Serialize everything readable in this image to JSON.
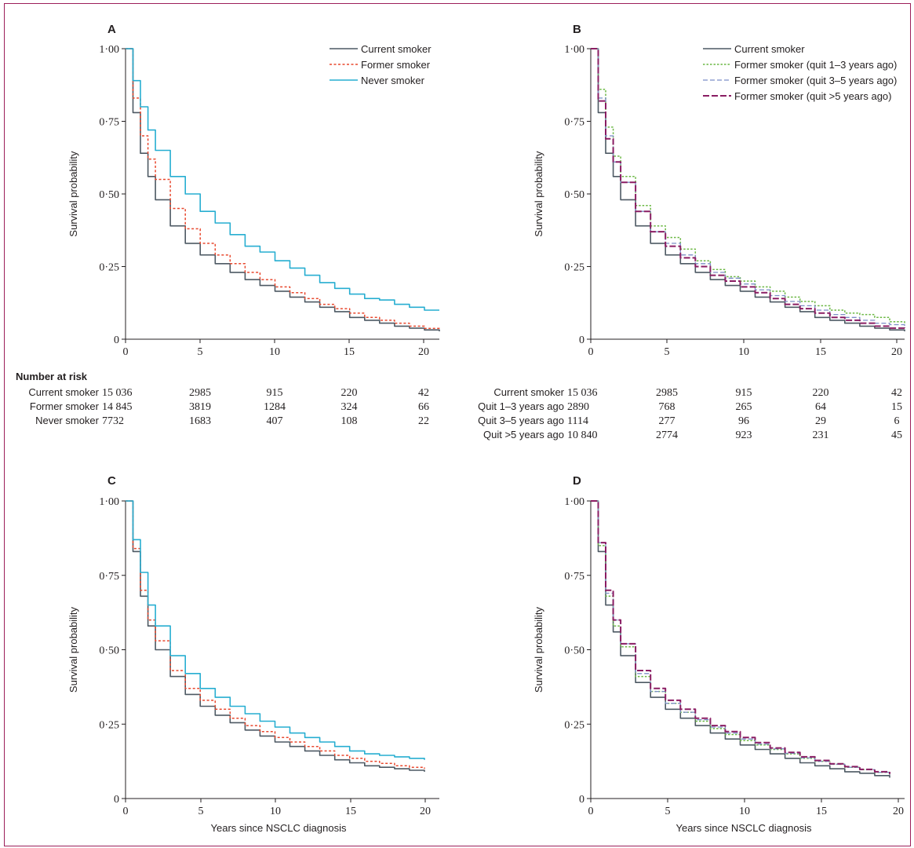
{
  "figure": {
    "y_axis_label": "Survival probability",
    "x_axis_label": "Years since NSCLC diagnosis",
    "risk_table_title": "Number at risk"
  },
  "colors": {
    "current": "#4d5963",
    "former": "#e8482e",
    "never": "#27aed1",
    "quit13": "#6cb845",
    "quit35": "#7b8ec6",
    "quit5": "#8a1d63",
    "frame": "#9c1f5a"
  },
  "chart_data": [
    {
      "panel": "A",
      "type": "line",
      "xlim": [
        0,
        21
      ],
      "ylim": [
        0,
        1
      ],
      "xticks": [
        "0",
        "5",
        "10",
        "15",
        "20"
      ],
      "yticks": [
        "0",
        "0·25",
        "0·50",
        "0·75",
        "1·00"
      ],
      "legend_position": "top-right",
      "series": [
        {
          "name": "Current smoker",
          "style": "current",
          "x": [
            0,
            0.5,
            1,
            1.5,
            2,
            3,
            4,
            5,
            6,
            7,
            8,
            9,
            10,
            11,
            12,
            13,
            14,
            15,
            16,
            17,
            18,
            19,
            20,
            21
          ],
          "y": [
            1,
            0.78,
            0.64,
            0.56,
            0.48,
            0.39,
            0.33,
            0.29,
            0.26,
            0.23,
            0.205,
            0.185,
            0.165,
            0.145,
            0.128,
            0.11,
            0.095,
            0.075,
            0.065,
            0.055,
            0.045,
            0.038,
            0.032,
            0.027
          ]
        },
        {
          "name": "Former smoker",
          "style": "former",
          "x": [
            0,
            0.5,
            1,
            1.5,
            2,
            3,
            4,
            5,
            6,
            7,
            8,
            9,
            10,
            11,
            12,
            13,
            14,
            15,
            16,
            17,
            18,
            19,
            20,
            21
          ],
          "y": [
            1,
            0.83,
            0.7,
            0.62,
            0.55,
            0.45,
            0.38,
            0.33,
            0.29,
            0.26,
            0.23,
            0.205,
            0.18,
            0.16,
            0.14,
            0.12,
            0.105,
            0.09,
            0.075,
            0.065,
            0.055,
            0.045,
            0.037,
            0.03
          ]
        },
        {
          "name": "Never smoker",
          "style": "never",
          "x": [
            0,
            0.5,
            1,
            1.5,
            2,
            3,
            4,
            5,
            6,
            7,
            8,
            9,
            10,
            11,
            12,
            13,
            14,
            15,
            16,
            17,
            18,
            19,
            20,
            21
          ],
          "y": [
            1,
            0.89,
            0.8,
            0.72,
            0.65,
            0.56,
            0.5,
            0.44,
            0.4,
            0.36,
            0.32,
            0.3,
            0.27,
            0.245,
            0.22,
            0.195,
            0.175,
            0.155,
            0.14,
            0.135,
            0.12,
            0.11,
            0.1,
            0.1
          ]
        }
      ],
      "risk_table": {
        "times": [
          "0",
          "5",
          "10",
          "15",
          "20"
        ],
        "rows": [
          {
            "label": "Current smoker",
            "values": [
              "15 036",
              "2985",
              "915",
              "220",
              "42"
            ]
          },
          {
            "label": "Former smoker",
            "values": [
              "14 845",
              "3819",
              "1284",
              "324",
              "66"
            ]
          },
          {
            "label": "Never smoker",
            "values": [
              "7732",
              "1683",
              "407",
              "108",
              "22"
            ]
          }
        ]
      }
    },
    {
      "panel": "B",
      "type": "line",
      "xlim": [
        0,
        21
      ],
      "ylim": [
        0,
        1
      ],
      "xticks": [
        "0",
        "5",
        "10",
        "15",
        "20"
      ],
      "yticks": [
        "0",
        "0·25",
        "0·50",
        "0·75",
        "1·00"
      ],
      "legend_position": "top-right",
      "series": [
        {
          "name": "Current smoker",
          "style": "current",
          "x": [
            0,
            0.5,
            1,
            1.5,
            2,
            3,
            4,
            5,
            6,
            7,
            8,
            9,
            10,
            11,
            12,
            13,
            14,
            15,
            16,
            17,
            18,
            19,
            20,
            21
          ],
          "y": [
            1,
            0.78,
            0.64,
            0.56,
            0.48,
            0.39,
            0.33,
            0.29,
            0.26,
            0.23,
            0.205,
            0.185,
            0.165,
            0.145,
            0.128,
            0.11,
            0.095,
            0.075,
            0.065,
            0.055,
            0.045,
            0.038,
            0.032,
            0.027
          ]
        },
        {
          "name": "Former smoker (quit 1–3 years ago)",
          "style": "quit13",
          "x": [
            0,
            0.5,
            1,
            1.5,
            2,
            3,
            4,
            5,
            6,
            7,
            8,
            9,
            10,
            11,
            12,
            13,
            14,
            15,
            16,
            17,
            18,
            19,
            20,
            21
          ],
          "y": [
            1,
            0.86,
            0.73,
            0.63,
            0.56,
            0.46,
            0.39,
            0.35,
            0.31,
            0.27,
            0.24,
            0.215,
            0.2,
            0.18,
            0.165,
            0.145,
            0.13,
            0.115,
            0.1,
            0.09,
            0.085,
            0.075,
            0.06,
            0.05
          ]
        },
        {
          "name": "Former smoker (quit 3–5 years ago)",
          "style": "quit35",
          "x": [
            0,
            0.5,
            1,
            1.5,
            2,
            3,
            4,
            5,
            6,
            7,
            8,
            9,
            10,
            11,
            12,
            13,
            14,
            15,
            16,
            17,
            18,
            19,
            20,
            21
          ],
          "y": [
            1,
            0.83,
            0.7,
            0.61,
            0.54,
            0.44,
            0.37,
            0.33,
            0.29,
            0.26,
            0.23,
            0.21,
            0.19,
            0.17,
            0.15,
            0.13,
            0.115,
            0.1,
            0.085,
            0.075,
            0.065,
            0.055,
            0.05,
            0.045
          ]
        },
        {
          "name": "Former smoker (quit >5 years ago)",
          "style": "quit5",
          "x": [
            0,
            0.5,
            1,
            1.5,
            2,
            3,
            4,
            5,
            6,
            7,
            8,
            9,
            10,
            11,
            12,
            13,
            14,
            15,
            16,
            17,
            18,
            19,
            20,
            21
          ],
          "y": [
            1,
            0.82,
            0.69,
            0.61,
            0.54,
            0.44,
            0.37,
            0.32,
            0.28,
            0.25,
            0.22,
            0.2,
            0.18,
            0.16,
            0.14,
            0.12,
            0.105,
            0.09,
            0.075,
            0.065,
            0.055,
            0.045,
            0.038,
            0.032
          ]
        }
      ],
      "risk_table": {
        "times": [
          "0",
          "5",
          "10",
          "15",
          "20"
        ],
        "rows": [
          {
            "label": "Current smoker",
            "values": [
              "15 036",
              "2985",
              "915",
              "220",
              "42"
            ]
          },
          {
            "label": "Quit 1–3 years ago",
            "values": [
              "2890",
              "768",
              "265",
              "64",
              "15"
            ]
          },
          {
            "label": "Quit 3–5 years ago",
            "values": [
              "1114",
              "277",
              "96",
              "29",
              "6"
            ]
          },
          {
            "label": "Quit >5 years ago",
            "values": [
              "10 840",
              "2774",
              "923",
              "231",
              "45"
            ]
          }
        ]
      }
    },
    {
      "panel": "C",
      "type": "line",
      "xlim": [
        0,
        21
      ],
      "ylim": [
        0,
        1
      ],
      "xticks": [
        "0",
        "5",
        "10",
        "15",
        "20"
      ],
      "yticks": [
        "0",
        "0·25",
        "0·50",
        "0·75",
        "1·00"
      ],
      "xlabel": "Years since NSCLC diagnosis",
      "series": [
        {
          "style": "current",
          "x": [
            0,
            0.5,
            1,
            1.5,
            2,
            3,
            4,
            5,
            6,
            7,
            8,
            9,
            10,
            11,
            12,
            13,
            14,
            15,
            16,
            17,
            18,
            19,
            20
          ],
          "y": [
            1,
            0.83,
            0.68,
            0.58,
            0.5,
            0.41,
            0.35,
            0.31,
            0.28,
            0.255,
            0.23,
            0.21,
            0.19,
            0.175,
            0.16,
            0.145,
            0.13,
            0.12,
            0.11,
            0.105,
            0.1,
            0.095,
            0.09
          ]
        },
        {
          "style": "former",
          "x": [
            0,
            0.5,
            1,
            1.5,
            2,
            3,
            4,
            5,
            6,
            7,
            8,
            9,
            10,
            11,
            12,
            13,
            14,
            15,
            16,
            17,
            18,
            19,
            20
          ],
          "y": [
            1,
            0.84,
            0.7,
            0.6,
            0.53,
            0.43,
            0.37,
            0.33,
            0.3,
            0.27,
            0.245,
            0.225,
            0.205,
            0.19,
            0.175,
            0.16,
            0.145,
            0.135,
            0.125,
            0.118,
            0.11,
            0.105,
            0.1
          ]
        },
        {
          "style": "never",
          "x": [
            0,
            0.5,
            1,
            1.5,
            2,
            3,
            4,
            5,
            6,
            7,
            8,
            9,
            10,
            11,
            12,
            13,
            14,
            15,
            16,
            17,
            18,
            19,
            20
          ],
          "y": [
            1,
            0.87,
            0.76,
            0.65,
            0.58,
            0.48,
            0.42,
            0.37,
            0.34,
            0.31,
            0.285,
            0.26,
            0.24,
            0.22,
            0.205,
            0.19,
            0.175,
            0.16,
            0.15,
            0.145,
            0.14,
            0.135,
            0.13
          ]
        }
      ]
    },
    {
      "panel": "D",
      "type": "line",
      "xlim": [
        0,
        21
      ],
      "ylim": [
        0,
        1
      ],
      "xticks": [
        "0",
        "5",
        "10",
        "15",
        "20"
      ],
      "yticks": [
        "0",
        "0·25",
        "0·50",
        "0·75",
        "1·00"
      ],
      "xlabel": "Years since NSCLC diagnosis",
      "series": [
        {
          "style": "current",
          "x": [
            0,
            0.5,
            1,
            1.5,
            2,
            3,
            4,
            5,
            6,
            7,
            8,
            9,
            10,
            11,
            12,
            13,
            14,
            15,
            16,
            17,
            18,
            19,
            20
          ],
          "y": [
            1,
            0.83,
            0.65,
            0.56,
            0.48,
            0.39,
            0.34,
            0.3,
            0.27,
            0.245,
            0.22,
            0.2,
            0.18,
            0.165,
            0.15,
            0.135,
            0.12,
            0.11,
            0.1,
            0.09,
            0.085,
            0.077,
            0.07
          ]
        },
        {
          "style": "quit13",
          "x": [
            0,
            0.5,
            1,
            1.5,
            2,
            3,
            4,
            5,
            6,
            7,
            8,
            9,
            10,
            11,
            12,
            13,
            14,
            15,
            16,
            17,
            18,
            19,
            20
          ],
          "y": [
            1,
            0.85,
            0.68,
            0.58,
            0.51,
            0.41,
            0.36,
            0.32,
            0.29,
            0.26,
            0.235,
            0.215,
            0.195,
            0.18,
            0.165,
            0.15,
            0.135,
            0.125,
            0.115,
            0.105,
            0.097,
            0.088,
            0.08
          ]
        },
        {
          "style": "quit35",
          "x": [
            0,
            0.5,
            1,
            1.5,
            2,
            3,
            4,
            5,
            6,
            7,
            8,
            9,
            10,
            11,
            12,
            13,
            14,
            15,
            16,
            17,
            18,
            19,
            20
          ],
          "y": [
            1,
            0.86,
            0.69,
            0.6,
            0.52,
            0.42,
            0.36,
            0.32,
            0.29,
            0.265,
            0.24,
            0.22,
            0.2,
            0.183,
            0.167,
            0.152,
            0.137,
            0.125,
            0.115,
            0.105,
            0.097,
            0.088,
            0.08
          ]
        },
        {
          "style": "quit5",
          "x": [
            0,
            0.5,
            1,
            1.5,
            2,
            3,
            4,
            5,
            6,
            7,
            8,
            9,
            10,
            11,
            12,
            13,
            14,
            15,
            16,
            17,
            18,
            19,
            20
          ],
          "y": [
            1,
            0.86,
            0.7,
            0.6,
            0.52,
            0.43,
            0.37,
            0.33,
            0.3,
            0.27,
            0.245,
            0.225,
            0.205,
            0.188,
            0.17,
            0.155,
            0.14,
            0.128,
            0.117,
            0.107,
            0.098,
            0.09,
            0.082
          ]
        }
      ]
    }
  ]
}
